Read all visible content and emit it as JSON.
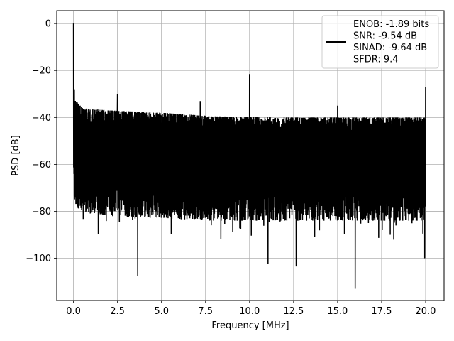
{
  "chart_data": {
    "type": "line",
    "xlabel": "Frequency [MHz]",
    "ylabel": "PSD [dB]",
    "xlim": [
      -0.95,
      21.05
    ],
    "ylim": [
      -118,
      5.5
    ],
    "x_ticks": [
      0.0,
      2.5,
      5.0,
      7.5,
      10.0,
      12.5,
      15.0,
      17.5,
      20.0
    ],
    "x_tick_labels": [
      "0.0",
      "2.5",
      "5.0",
      "7.5",
      "10.0",
      "12.5",
      "15.0",
      "17.5",
      "20.0"
    ],
    "y_ticks": [
      0,
      -20,
      -40,
      -60,
      -80,
      -100
    ],
    "y_tick_labels": [
      "0",
      "−20",
      "−40",
      "−60",
      "−80",
      "−100"
    ],
    "grid": true,
    "legend_placement": "top-right",
    "legend_entries": [
      "ENOB: -1.89 bits",
      "SNR: -9.54 dB",
      "SINAD: -9.64 dB",
      "SFDR: 9.4"
    ],
    "series_color": "#000000",
    "noise_floor_envelope": {
      "x": [
        0.0,
        0.15,
        0.5,
        2.0,
        5.0,
        8.0,
        12.0,
        16.0,
        20.0
      ],
      "upper_db": [
        -30,
        -33,
        -36,
        -37,
        -38,
        -39.5,
        -40,
        -40,
        -40
      ],
      "lower_db": [
        -75,
        -78,
        -80,
        -82,
        -83,
        -84,
        -84,
        -84,
        -84
      ]
    },
    "spikes": [
      {
        "x": 0.0,
        "y": 0
      },
      {
        "x": 0.05,
        "y": -28
      },
      {
        "x": 2.5,
        "y": -30
      },
      {
        "x": 10.0,
        "y": -21.5
      },
      {
        "x": 7.2,
        "y": -33
      },
      {
        "x": 15.0,
        "y": -35
      },
      {
        "x": 20.0,
        "y": -27
      }
    ],
    "dips": [
      {
        "x": 3.65,
        "y": -107.5
      },
      {
        "x": 11.05,
        "y": -102.5
      },
      {
        "x": 12.65,
        "y": -103.5
      },
      {
        "x": 16.0,
        "y": -113
      },
      {
        "x": 19.95,
        "y": -100
      }
    ]
  }
}
